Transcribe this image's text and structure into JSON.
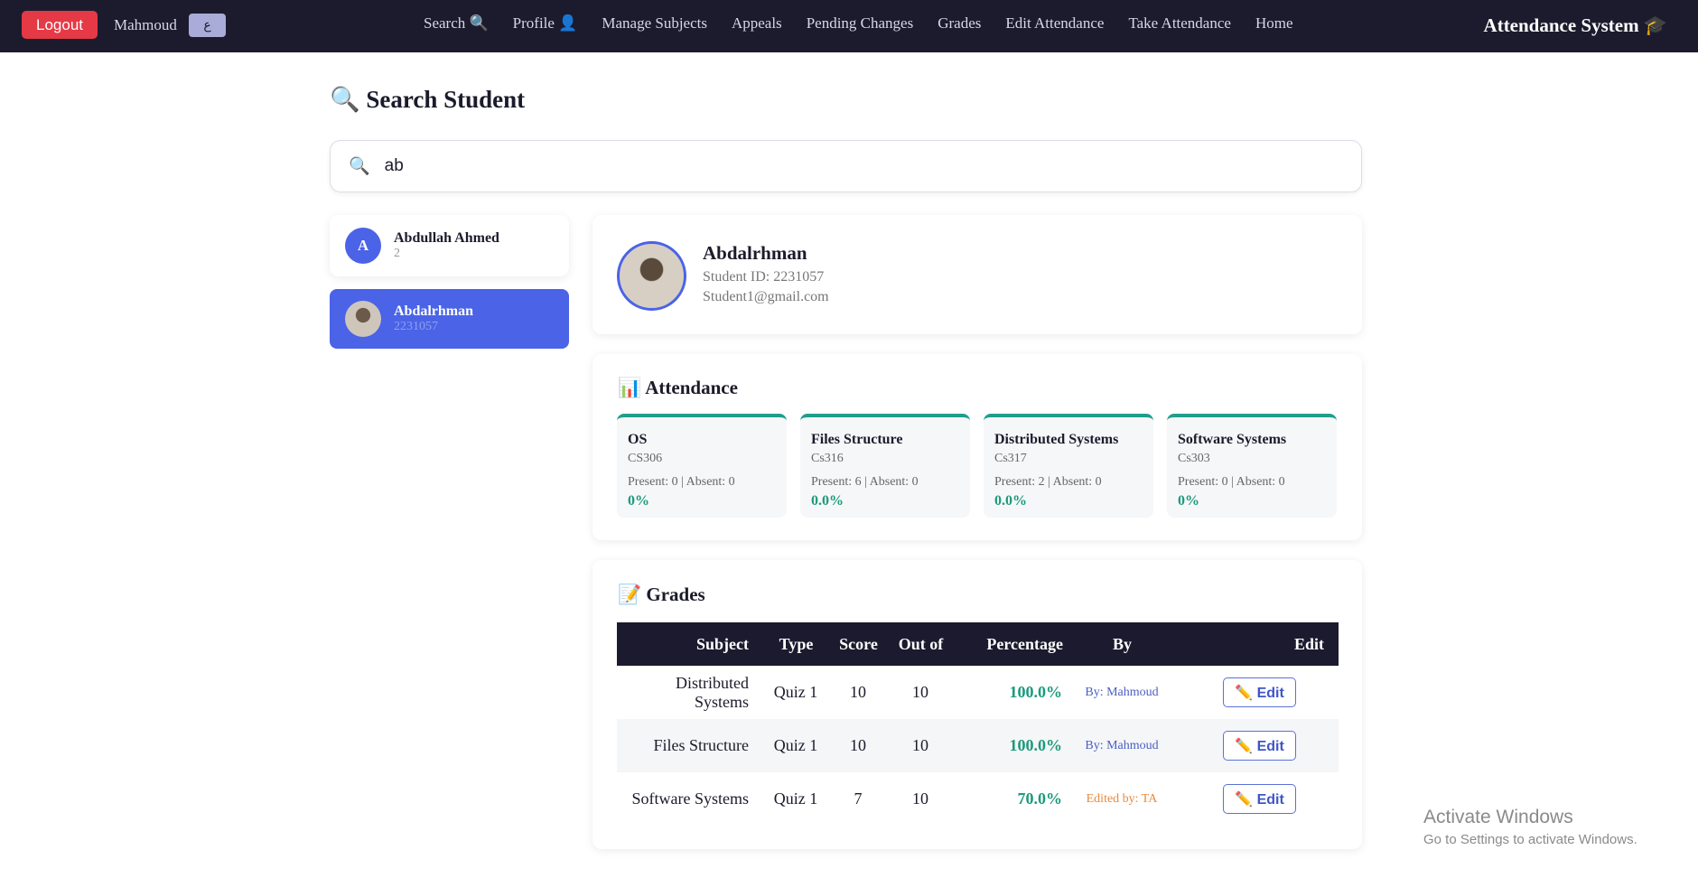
{
  "nav": {
    "logout": "Logout",
    "user": "Mahmoud",
    "lang": "ع",
    "links": [
      "Search 🔍",
      "Profile 👤",
      "Manage Subjects",
      "Appeals",
      "Pending Changes",
      "Grades",
      "Edit Attendance",
      "Take Attendance",
      "Home"
    ],
    "brand": "Attendance System 🎓"
  },
  "search": {
    "title": "🔍 Search Student",
    "icon": "🔍",
    "query": "ab"
  },
  "students": [
    {
      "initial": "A",
      "name": "Abdullah Ahmed",
      "id": "2"
    },
    {
      "name": "Abdalrhman",
      "id": "2231057"
    }
  ],
  "profile": {
    "name": "Abdalrhman",
    "student_id": "Student ID: 2231057",
    "email": "Student1@gmail.com"
  },
  "attendance": {
    "title": "📊 Attendance",
    "cards": [
      {
        "subject": "OS",
        "code": "CS306",
        "counts": "Present: 0 | Absent: 0",
        "percent": "0%"
      },
      {
        "subject": "Files Structure",
        "code": "Cs316",
        "counts": "Present: 6 | Absent: 0",
        "percent": "0.0%"
      },
      {
        "subject": "Distributed Systems",
        "code": "Cs317",
        "counts": "Present: 2 | Absent: 0",
        "percent": "0.0%"
      },
      {
        "subject": "Software Systems",
        "code": "Cs303",
        "counts": "Present: 0 | Absent: 0",
        "percent": "0%"
      }
    ]
  },
  "grades": {
    "title": "📝 Grades",
    "columns": [
      "Subject",
      "Type",
      "Score",
      "Out of",
      "Percentage",
      "By",
      "Edit"
    ],
    "rows": [
      [
        "Distributed Systems",
        "Quiz 1",
        "10",
        "10",
        "100.0%",
        "By: Mahmoud",
        "✏️ Edit"
      ],
      [
        "Files Structure",
        "Quiz 1",
        "10",
        "10",
        "100.0%",
        "By: Mahmoud",
        "✏️ Edit"
      ],
      [
        "Software Systems",
        "Quiz 1",
        "7",
        "10",
        "70.0%",
        "Edited by: TA",
        "✏️ Edit"
      ]
    ]
  },
  "windows": {
    "title": "Activate Windows",
    "subtitle": "Go to Settings to activate Windows."
  }
}
